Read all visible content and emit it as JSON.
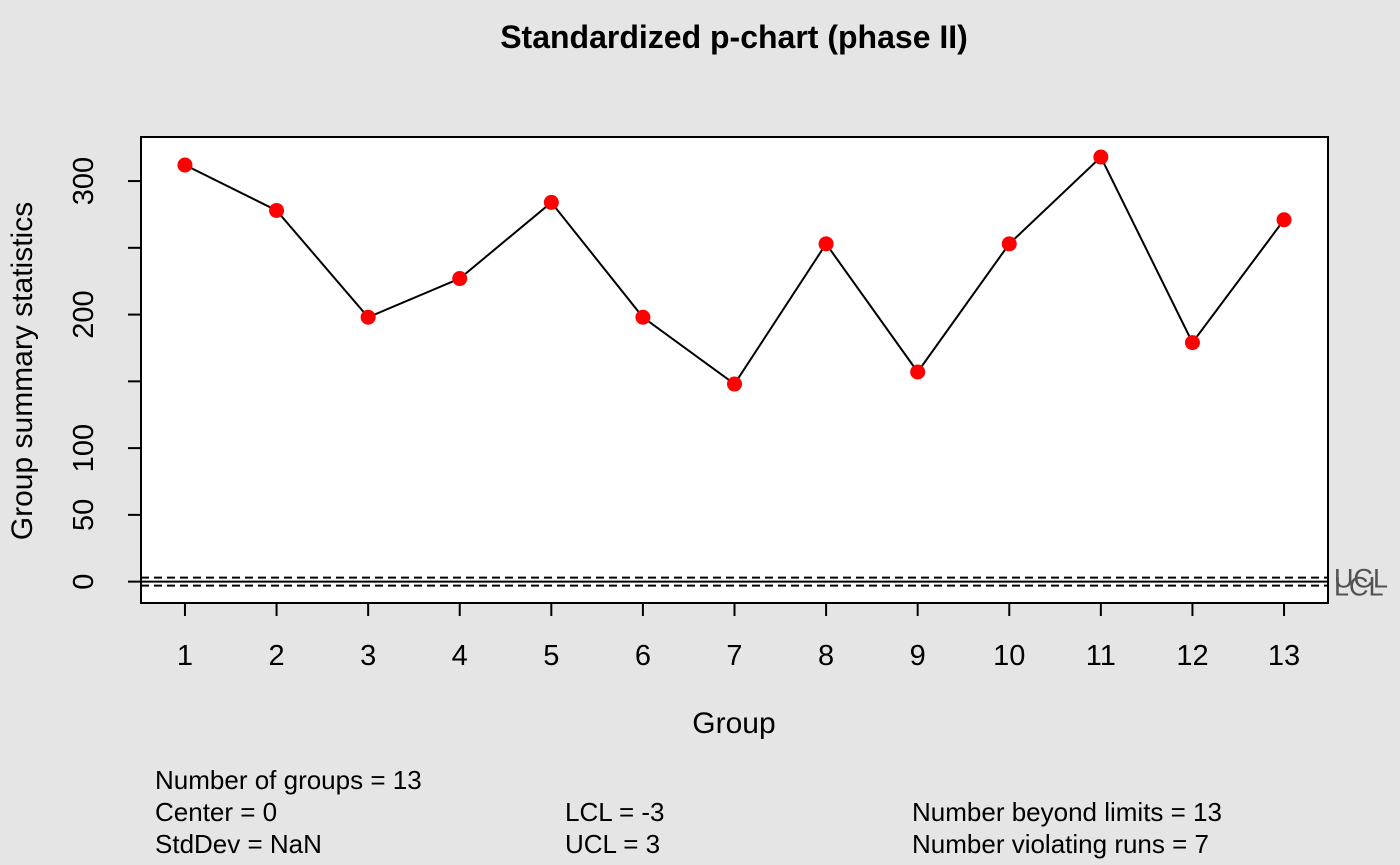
{
  "chart_data": {
    "type": "line",
    "title": "Standardized p-chart (phase II)",
    "xlabel": "Group",
    "ylabel": "Group summary statistics",
    "categories": [
      1,
      2,
      3,
      4,
      5,
      6,
      7,
      8,
      9,
      10,
      11,
      12,
      13
    ],
    "values": [
      312,
      278,
      198,
      227,
      284,
      198,
      148,
      253,
      157,
      253,
      318,
      179,
      271
    ],
    "center": 0,
    "lcl": -3,
    "ucl": 3,
    "ylim": [
      -16,
      333
    ],
    "xlim": [
      0.52,
      13.48
    ],
    "yticks": [
      {
        "value": 0,
        "label": "0"
      },
      {
        "value": 50,
        "label": "50"
      },
      {
        "value": 100,
        "label": "100"
      },
      {
        "value": 150,
        "label": ""
      },
      {
        "value": 200,
        "label": "200"
      },
      {
        "value": 250,
        "label": ""
      },
      {
        "value": 300,
        "label": "300"
      }
    ],
    "limit_labels": {
      "ucl": "UCL",
      "lcl": "LCL"
    },
    "grid": false,
    "legend": "none",
    "colors": {
      "point": "#ff0000",
      "line": "#000000",
      "background": "#e5e5e5",
      "plot_background": "#ffffff",
      "limit_label": "#525252",
      "text": "#000000"
    }
  },
  "stats": {
    "groups": "Number of groups = 13",
    "center": "Center = 0",
    "stddev": "StdDev = NaN",
    "lcl": "LCL = -3",
    "ucl": "UCL = 3",
    "beyond": "Number beyond limits = 13",
    "violating": "Number violating runs = 7"
  }
}
